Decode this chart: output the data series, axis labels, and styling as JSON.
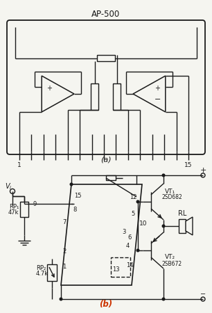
{
  "bg_color": "#f5f5f0",
  "line_color": "#1a1a1a",
  "lw": 1.0,
  "fig_width": 3.06,
  "fig_height": 4.5,
  "dpi": 100,
  "title_a": "AP-500",
  "label_a": "(a)",
  "label_b": "(b)",
  "label_b_color": "#cc3300"
}
